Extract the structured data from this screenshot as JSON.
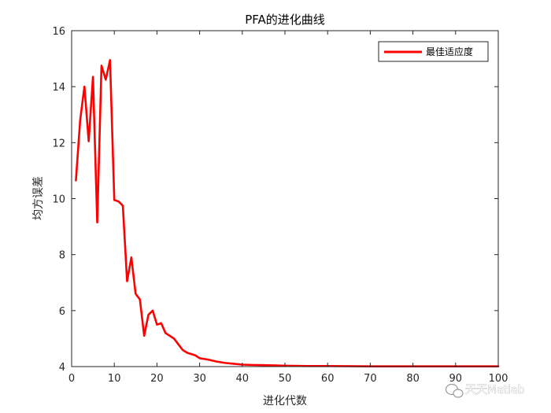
{
  "chart_data": {
    "type": "line",
    "title": "PFA的进化曲线",
    "xlabel": "进化代数",
    "ylabel": "均方误差",
    "xlim": [
      0,
      100
    ],
    "ylim": [
      4,
      16
    ],
    "xticks": [
      0,
      10,
      20,
      30,
      40,
      50,
      60,
      70,
      80,
      90,
      100
    ],
    "yticks": [
      4,
      6,
      8,
      10,
      12,
      14,
      16
    ],
    "grid": false,
    "legend_position": "top-right",
    "series": [
      {
        "name": "最佳适应度",
        "color": "#ff0000",
        "x": [
          1,
          2,
          3,
          4,
          5,
          6,
          7,
          8,
          9,
          10,
          11,
          12,
          13,
          14,
          15,
          16,
          17,
          18,
          19,
          20,
          21,
          22,
          23,
          24,
          25,
          26,
          27,
          28,
          29,
          30,
          32,
          34,
          36,
          38,
          40,
          42,
          45,
          48,
          50,
          55,
          60,
          70,
          80,
          90,
          100
        ],
        "y": [
          10.65,
          12.8,
          14.0,
          12.05,
          14.35,
          9.15,
          14.75,
          14.25,
          14.95,
          9.95,
          9.9,
          9.75,
          7.05,
          7.9,
          6.6,
          6.4,
          5.1,
          5.85,
          6.0,
          5.5,
          5.55,
          5.2,
          5.1,
          5.0,
          4.8,
          4.6,
          4.5,
          4.45,
          4.4,
          4.3,
          4.25,
          4.18,
          4.13,
          4.1,
          4.07,
          4.06,
          4.05,
          4.04,
          4.03,
          4.02,
          4.02,
          4.01,
          4.01,
          4.01,
          4.01
        ]
      }
    ]
  },
  "watermark": {
    "text": "天天Matlab",
    "icon": "wechat-icon"
  }
}
